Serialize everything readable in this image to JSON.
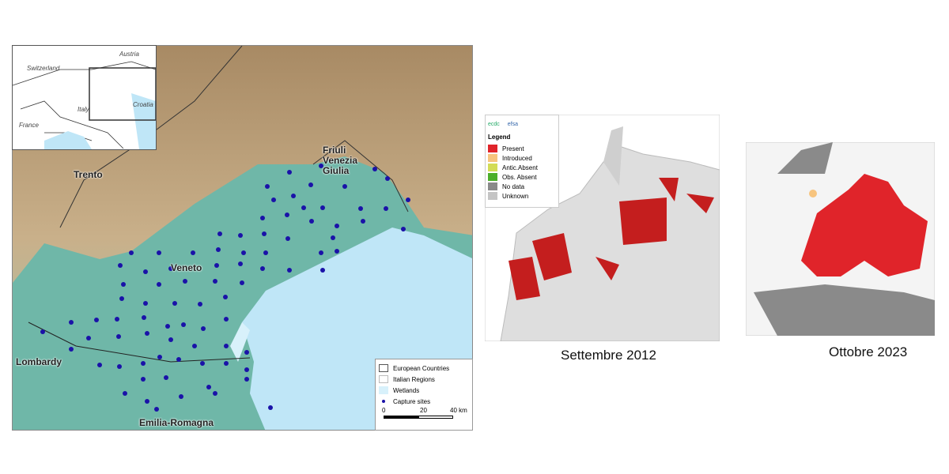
{
  "left_map": {
    "inset_labels": [
      "Austria",
      "Switzerland",
      "Italy",
      "Croatia",
      "France"
    ],
    "region_labels": {
      "trento": "Trento",
      "friuli": "Friuli\nVenezia\nGiulia",
      "veneto": "Veneto",
      "lombardy": "Lombardy",
      "emilia": "Emilia-Romagna"
    },
    "legend": {
      "items": [
        "European Countries",
        "Italian Regions",
        "Wetlands",
        "Capture sites"
      ],
      "scale": [
        "0",
        "20",
        "40 km"
      ]
    },
    "colors": {
      "sea": "#bfe6f7",
      "lowland": "#6fb7a8",
      "mountains": "#b89a6e",
      "capture_site": "#1a12a8"
    }
  },
  "right_maps": {
    "legend": {
      "logos": [
        "ecdc",
        "efsa"
      ],
      "title": "Legend",
      "items": [
        {
          "label": "Present",
          "color": "#e0242a"
        },
        {
          "label": "Introduced",
          "color": "#f7c47e"
        },
        {
          "label": "Antic.Absent",
          "color": "#d3dc55"
        },
        {
          "label": "Obs. Absent",
          "color": "#4caf2a"
        },
        {
          "label": "No data",
          "color": "#8a8a8a"
        },
        {
          "label": "Unknown",
          "color": "#c4c4c4"
        }
      ]
    },
    "captions": [
      "Settembre 2012",
      "Ottobre 2023"
    ]
  }
}
